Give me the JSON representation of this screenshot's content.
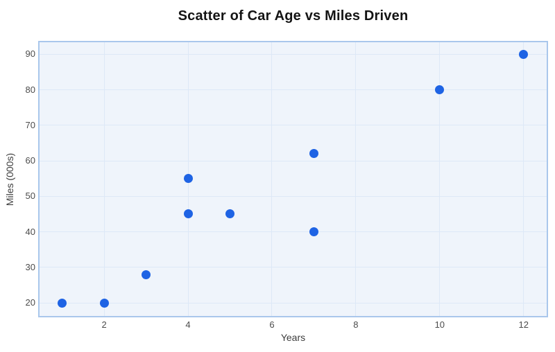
{
  "chart_data": {
    "type": "scatter",
    "title": "Scatter of Car Age vs Miles Driven",
    "xlabel": "Years",
    "ylabel": "Miles (000s)",
    "x_ticks": [
      2,
      4,
      6,
      8,
      10,
      12
    ],
    "y_ticks": [
      20,
      30,
      40,
      50,
      60,
      70,
      80,
      90
    ],
    "x_range": [
      0.46,
      12.55
    ],
    "y_range": [
      16.3,
      93.4
    ],
    "grid": true,
    "legend": "none",
    "points": [
      {
        "x": 1,
        "y": 20
      },
      {
        "x": 2,
        "y": 20
      },
      {
        "x": 3,
        "y": 28
      },
      {
        "x": 4,
        "y": 45
      },
      {
        "x": 4,
        "y": 55
      },
      {
        "x": 5,
        "y": 45
      },
      {
        "x": 7,
        "y": 40
      },
      {
        "x": 7,
        "y": 62
      },
      {
        "x": 10,
        "y": 80
      },
      {
        "x": 12,
        "y": 90
      }
    ],
    "colors": {
      "marker": "#1e63e4",
      "plot_background": "#eff4fb",
      "plot_border": "#a9c7ec",
      "gridline": "#dde8f7",
      "title_text": "#141414",
      "tick_text": "#4b4b4b",
      "axis_label_text": "#3c3c3c",
      "page_background": "#ffffff"
    }
  }
}
